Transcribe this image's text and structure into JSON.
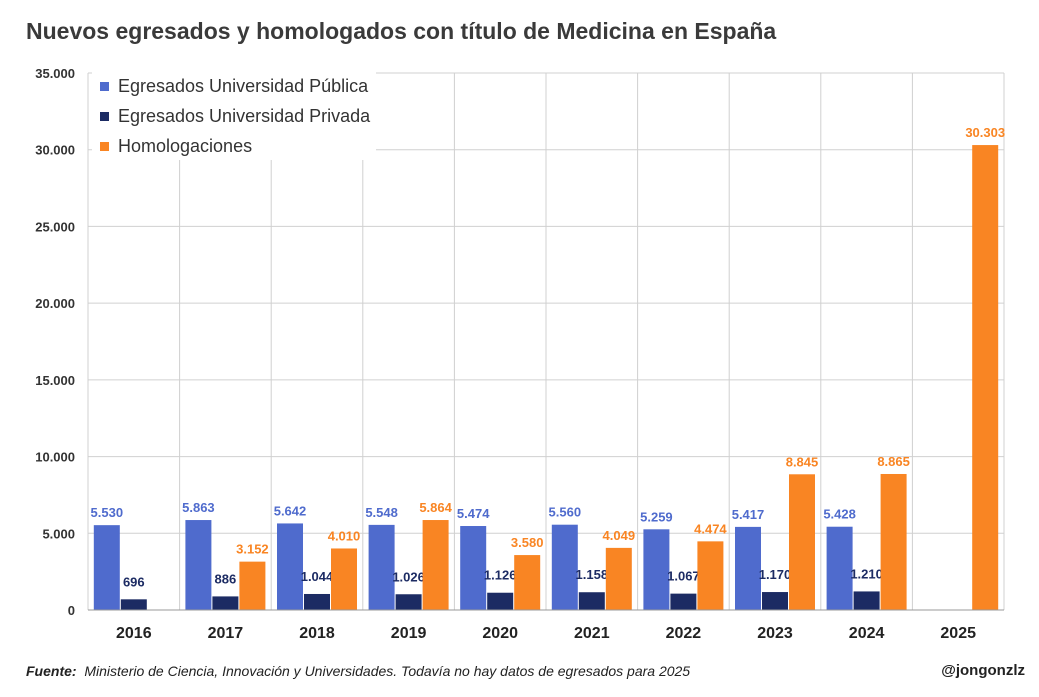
{
  "title": "Nuevos egresados y homologados con título de Medicina en España",
  "footer": {
    "source_label": "Fuente:",
    "source_text": "Ministerio de Ciencia, Innovación y Universidades. Todavía no hay datos de egresados para 2025",
    "handle": "@jongonzlz"
  },
  "chart_data": {
    "type": "bar",
    "title": "Nuevos egresados y homologados con título de Medicina en España",
    "xlabel": "",
    "ylabel": "",
    "ylim": [
      0,
      35000
    ],
    "yticks": [
      0,
      5000,
      10000,
      15000,
      20000,
      25000,
      30000,
      35000
    ],
    "ytick_labels": [
      "0",
      "5.000",
      "10.000",
      "15.000",
      "20.000",
      "25.000",
      "30.000",
      "35.000"
    ],
    "grid": true,
    "legend_position": "top-left",
    "categories": [
      "2016",
      "2017",
      "2018",
      "2019",
      "2020",
      "2021",
      "2022",
      "2023",
      "2024",
      "2025"
    ],
    "series": [
      {
        "name": "Egresados Universidad Pública",
        "color": "#4f6bcd",
        "values": [
          5530,
          5863,
          5642,
          5548,
          5474,
          5560,
          5259,
          5417,
          5428,
          null
        ],
        "labels": [
          "5.530",
          "5.863",
          "5.642",
          "5.548",
          "5.474",
          "5.560",
          "5.259",
          "5.417",
          "5.428",
          ""
        ]
      },
      {
        "name": "Egresados Universidad Privada",
        "color": "#1c2b63",
        "values": [
          696,
          886,
          1044,
          1026,
          1126,
          1158,
          1067,
          1170,
          1210,
          null
        ],
        "labels": [
          "696",
          "886",
          "1.044",
          "1.026",
          "1.126",
          "1.158",
          "1.067",
          "1.170",
          "1.210",
          ""
        ]
      },
      {
        "name": "Homologaciones",
        "color": "#f98523",
        "values": [
          null,
          3152,
          4010,
          5864,
          3580,
          4049,
          4474,
          8845,
          8865,
          30303
        ],
        "labels": [
          "",
          "3.152",
          "4.010",
          "5.864",
          "3.580",
          "4.049",
          "4.474",
          "8.845",
          "8.865",
          "30.303"
        ]
      }
    ]
  }
}
